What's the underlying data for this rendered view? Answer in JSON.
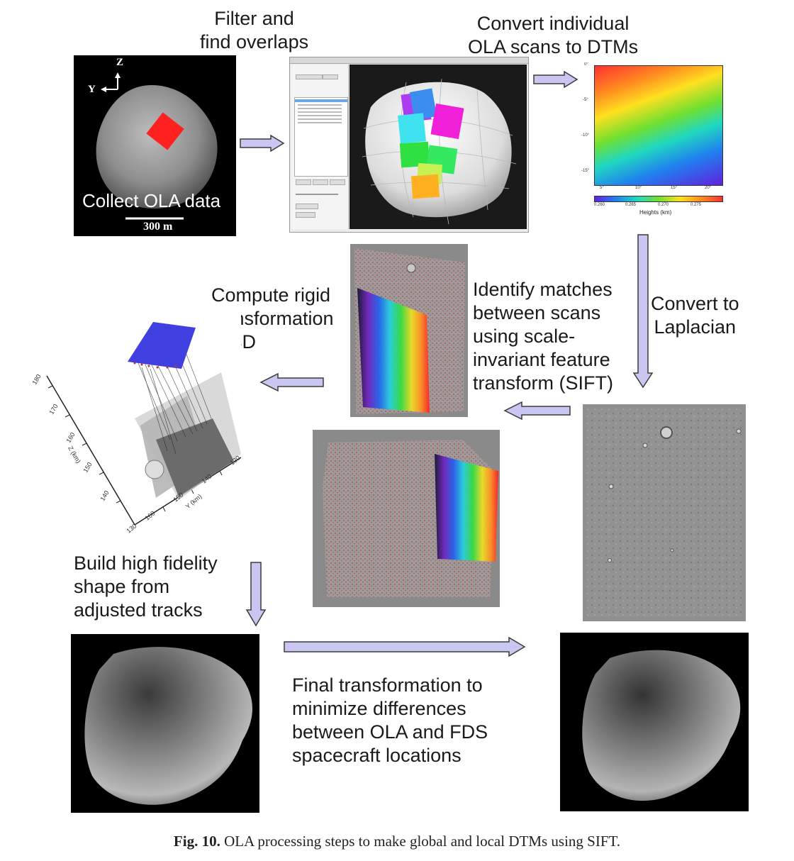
{
  "steps": {
    "filter": "Filter and\nfind overlaps",
    "convert_dtm": "Convert individual\nOLA scans to DTMs",
    "collect": "Collect OLA data",
    "convert_laplacian": "Convert to\nLaplacian",
    "identify_matches": "Identify matches\nbetween scans\nusing scale-\ninvariant feature\ntransform (SIFT)",
    "compute_rigid": "Compute rigid\ntransformation\nin 3D",
    "build_shape": "Build high fidelity\nshape from\nadjusted tracks",
    "final_transform": "Final transformation to\nminimize differences\nbetween OLA and FDS\nspacecraft locations"
  },
  "panel1": {
    "axis_z": "Z",
    "axis_y": "Y",
    "scale_label": "300 m"
  },
  "panel_dtm": {
    "y_ticks": [
      "0°",
      "-5°",
      "-10°",
      "-15°"
    ],
    "x_ticks": [
      "5°",
      "10°",
      "15°",
      "20°"
    ],
    "colorbar_ticks": [
      "0.260",
      "0.265",
      "0.270",
      "0.275"
    ],
    "colorbar_label": "Heights (km)"
  },
  "panel_3d": {
    "axis_ticks_left": [
      "180",
      "170",
      "160",
      "150",
      "140",
      "130"
    ],
    "axis_ticks_right": [
      "130",
      "140",
      "150",
      "160"
    ],
    "axis_label_a": "Z (km)",
    "axis_label_b": "Y (km)"
  },
  "caption": {
    "label": "Fig. 10.",
    "text": "OLA processing steps to make global and local DTMs using SIFT."
  },
  "colors": {
    "arrow_fill": "#c9c6f2",
    "arrow_stroke": "#3a3a3a"
  }
}
